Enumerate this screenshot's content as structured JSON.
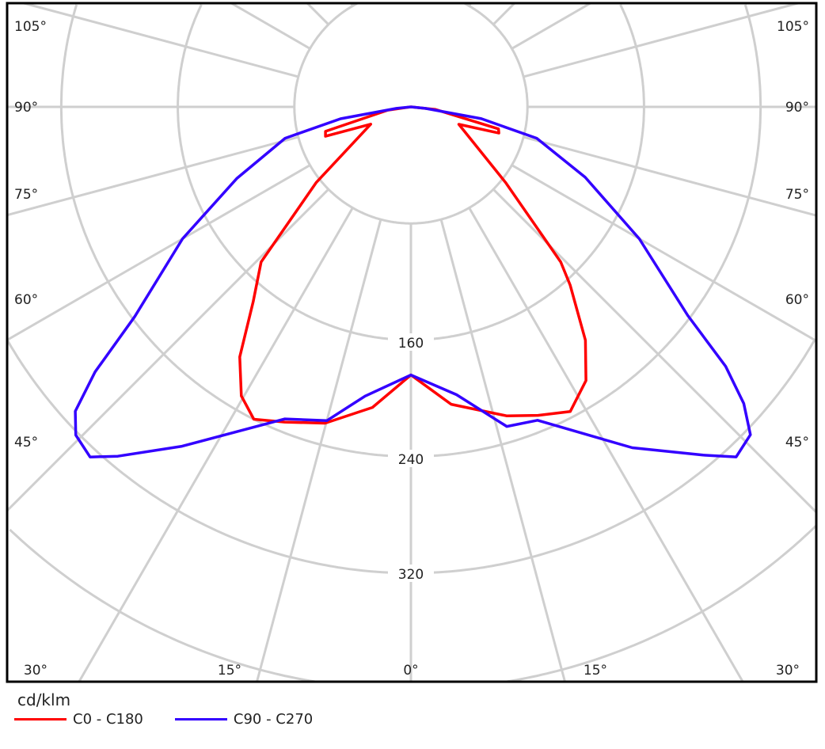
{
  "chart_data": {
    "type": "polar",
    "unit_label": "cd/klm",
    "radial_ticks": [
      160,
      240,
      320
    ],
    "radial_grid": [
      80,
      160,
      240,
      320,
      400,
      480,
      560
    ],
    "angle_labels_left": [
      "105°",
      "90°",
      "75°",
      "60°",
      "45°"
    ],
    "angle_labels_right": [
      "105°",
      "90°",
      "75°",
      "60°",
      "45°"
    ],
    "angle_labels_bottom": [
      "30°",
      "15°",
      "0°",
      "15°",
      "30°"
    ],
    "angle_grid_step_deg": 15,
    "grid": true,
    "legend_position": "bottom-left",
    "series": [
      {
        "name": "C0 - C180",
        "color": "#ff0000",
        "points_gamma_value": [
          [
            -90,
            0
          ],
          [
            -82,
            16
          ],
          [
            -74,
            61
          ],
          [
            -71,
            62
          ],
          [
            -66.7,
            30
          ],
          [
            -51.4,
            83
          ],
          [
            -44,
            148
          ],
          [
            -39,
            172
          ],
          [
            -34.4,
            208
          ],
          [
            -30.4,
            230
          ],
          [
            -26.7,
            240
          ],
          [
            -21.8,
            233
          ],
          [
            -15.2,
            225
          ],
          [
            -7.3,
            208
          ],
          [
            0,
            184
          ],
          [
            7.7,
            206
          ],
          [
            17.2,
            222
          ],
          [
            22.4,
            229
          ],
          [
            27.6,
            236
          ],
          [
            32.6,
            223
          ],
          [
            36.8,
            200
          ],
          [
            41.8,
            164
          ],
          [
            44,
            148
          ],
          [
            51.4,
            83
          ],
          [
            70,
            35
          ],
          [
            73.4,
            63
          ],
          [
            75.9,
            62
          ],
          [
            84,
            17
          ],
          [
            90,
            0
          ]
        ]
      },
      {
        "name": "C90 - C270",
        "color": "#3300ff",
        "points_gamma_value": [
          [
            -90,
            0
          ],
          [
            -84,
            10
          ],
          [
            -80.4,
            49
          ],
          [
            -76,
            89
          ],
          [
            -67.7,
            129
          ],
          [
            -60,
            181
          ],
          [
            -52.8,
            238
          ],
          [
            -50,
            283
          ],
          [
            -47.8,
            311
          ],
          [
            -45.6,
            322
          ],
          [
            -42.5,
            326
          ],
          [
            -40,
            313
          ],
          [
            -34,
            281
          ],
          [
            -22,
            231
          ],
          [
            -15,
            223
          ],
          [
            -9,
            201
          ],
          [
            0,
            184
          ],
          [
            9,
            200
          ],
          [
            16.7,
            229
          ],
          [
            22,
            232
          ],
          [
            33,
            279
          ],
          [
            40,
            312
          ],
          [
            42.9,
            328
          ],
          [
            46,
            324
          ],
          [
            48.3,
            306
          ],
          [
            50.5,
            280
          ],
          [
            53,
            238
          ],
          [
            60,
            181
          ],
          [
            68,
            129
          ],
          [
            76,
            89
          ],
          [
            80.5,
            49
          ],
          [
            84,
            10
          ],
          [
            90,
            0
          ]
        ]
      }
    ]
  }
}
